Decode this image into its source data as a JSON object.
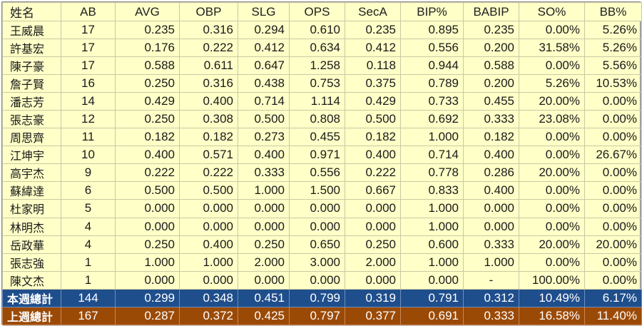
{
  "columns": [
    "姓名",
    "AB",
    "AVG",
    "OBP",
    "SLG",
    "OPS",
    "SecA",
    "BIP%",
    "BABIP",
    "SO%",
    "BB%"
  ],
  "rows": [
    [
      "王威晨",
      "17",
      "0.235",
      "0.316",
      "0.294",
      "0.610",
      "0.235",
      "0.895",
      "0.235",
      "0.00%",
      "5.26%"
    ],
    [
      "許基宏",
      "17",
      "0.176",
      "0.222",
      "0.412",
      "0.634",
      "0.412",
      "0.556",
      "0.200",
      "31.58%",
      "5.26%"
    ],
    [
      "陳子豪",
      "17",
      "0.588",
      "0.611",
      "0.647",
      "1.258",
      "0.118",
      "0.944",
      "0.588",
      "0.00%",
      "5.56%"
    ],
    [
      "詹子賢",
      "16",
      "0.250",
      "0.316",
      "0.438",
      "0.753",
      "0.375",
      "0.789",
      "0.200",
      "5.26%",
      "10.53%"
    ],
    [
      "潘志芳",
      "14",
      "0.429",
      "0.400",
      "0.714",
      "1.114",
      "0.429",
      "0.733",
      "0.455",
      "20.00%",
      "0.00%"
    ],
    [
      "張志豪",
      "12",
      "0.250",
      "0.308",
      "0.500",
      "0.808",
      "0.500",
      "0.692",
      "0.333",
      "23.08%",
      "0.00%"
    ],
    [
      "周思齊",
      "11",
      "0.182",
      "0.182",
      "0.273",
      "0.455",
      "0.182",
      "1.000",
      "0.182",
      "0.00%",
      "0.00%"
    ],
    [
      "江坤宇",
      "10",
      "0.400",
      "0.571",
      "0.400",
      "0.971",
      "0.400",
      "0.714",
      "0.400",
      "0.00%",
      "26.67%"
    ],
    [
      "高宇杰",
      "9",
      "0.222",
      "0.222",
      "0.333",
      "0.556",
      "0.222",
      "0.778",
      "0.286",
      "20.00%",
      "0.00%"
    ],
    [
      "蘇緯達",
      "6",
      "0.500",
      "0.500",
      "1.000",
      "1.500",
      "0.667",
      "0.833",
      "0.400",
      "0.00%",
      "0.00%"
    ],
    [
      "杜家明",
      "5",
      "0.000",
      "0.000",
      "0.000",
      "0.000",
      "0.000",
      "1.000",
      "0.000",
      "0.00%",
      "0.00%"
    ],
    [
      "林明杰",
      "4",
      "0.000",
      "0.000",
      "0.000",
      "0.000",
      "0.000",
      "1.000",
      "0.000",
      "0.00%",
      "0.00%"
    ],
    [
      "岳政華",
      "4",
      "0.250",
      "0.400",
      "0.250",
      "0.650",
      "0.250",
      "0.600",
      "0.333",
      "20.00%",
      "20.00%"
    ],
    [
      "張志強",
      "1",
      "1.000",
      "1.000",
      "2.000",
      "3.000",
      "2.000",
      "1.000",
      "1.000",
      "0.00%",
      "0.00%"
    ],
    [
      "陳文杰",
      "1",
      "0.000",
      "0.000",
      "0.000",
      "0.000",
      "0.000",
      "0.000",
      "-",
      "100.00%",
      "0.00%"
    ]
  ],
  "this_week_total": [
    "本週總計",
    "144",
    "0.299",
    "0.348",
    "0.451",
    "0.799",
    "0.319",
    "0.791",
    "0.312",
    "10.49%",
    "6.17%"
  ],
  "last_week_total": [
    "上週總計",
    "167",
    "0.287",
    "0.372",
    "0.425",
    "0.797",
    "0.377",
    "0.691",
    "0.333",
    "16.58%",
    "11.40%"
  ],
  "colors": {
    "cell_background": "#ffffc8",
    "this_week_row": "#1f4e8c",
    "last_week_row": "#9b4a06"
  }
}
